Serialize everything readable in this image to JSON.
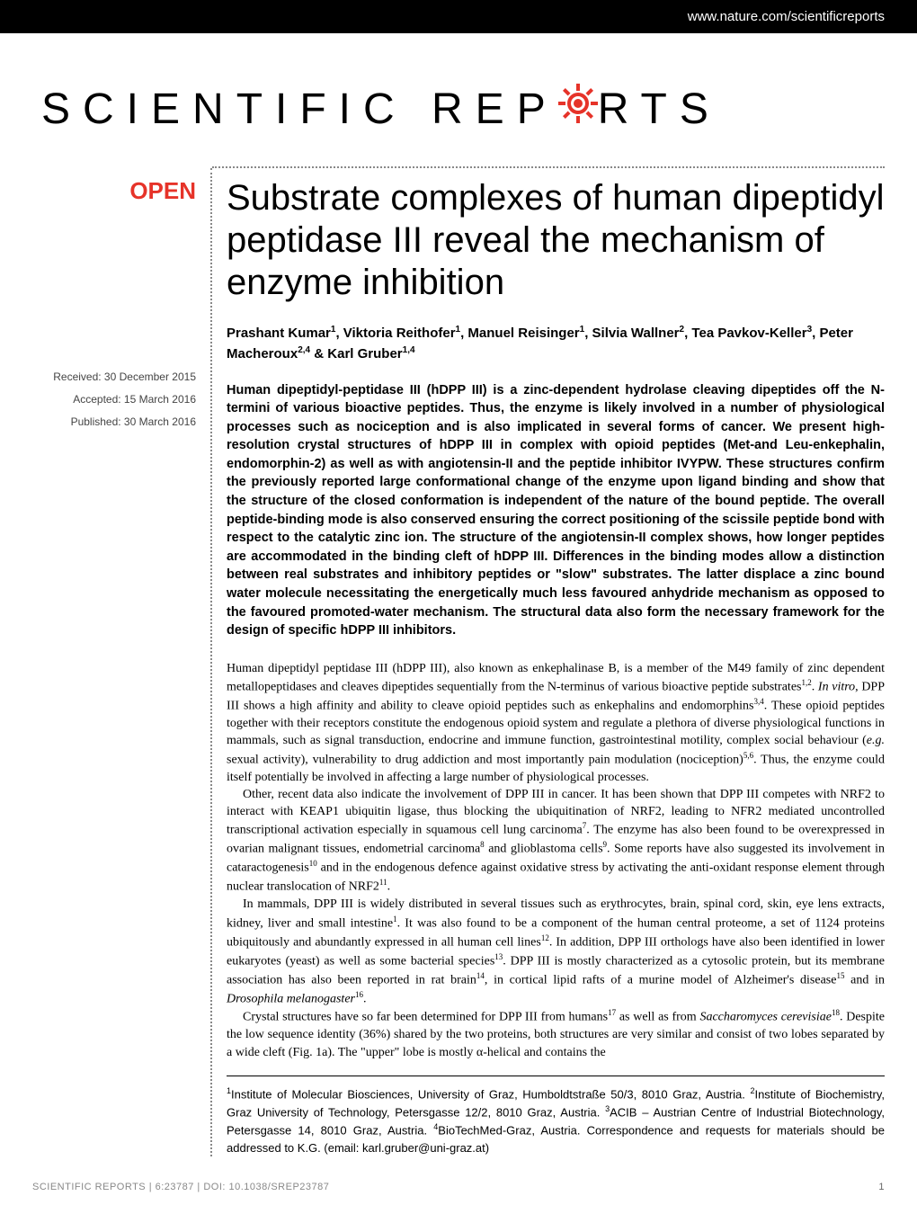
{
  "header": {
    "url": "www.nature.com/scientificreports"
  },
  "journal": {
    "name_part1": "SCIENTIFIC",
    "name_part2": "REP",
    "name_part3": "RTS"
  },
  "badge": {
    "open": "OPEN"
  },
  "meta": {
    "received": "Received: 30 December 2015",
    "accepted": "Accepted: 15 March 2016",
    "published": "Published: 30 March 2016"
  },
  "title": "Substrate complexes of human dipeptidyl peptidase III reveal the mechanism of enzyme inhibition",
  "authors_html": "Prashant Kumar<sup>1</sup>, Viktoria Reithofer<sup>1</sup>, Manuel Reisinger<sup>1</sup>, Silvia Wallner<sup>2</sup>, Tea Pavkov-Keller<sup>3</sup>, Peter Macheroux<sup>2,4</sup> & Karl Gruber<sup>1,4</sup>",
  "abstract": "Human dipeptidyl-peptidase III (hDPP III) is a zinc-dependent hydrolase cleaving dipeptides off the N-termini of various bioactive peptides. Thus, the enzyme is likely involved in a number of physiological processes such as nociception and is also implicated in several forms of cancer. We present high-resolution crystal structures of hDPP III in complex with opioid peptides (Met-and Leu-enkephalin, endomorphin-2) as well as with angiotensin-II and the peptide inhibitor IVYPW. These structures confirm the previously reported large conformational change of the enzyme upon ligand binding and show that the structure of the closed conformation is independent of the nature of the bound peptide. The overall peptide-binding mode is also conserved ensuring the correct positioning of the scissile peptide bond with respect to the catalytic zinc ion. The structure of the angiotensin-II complex shows, how longer peptides are accommodated in the binding cleft of hDPP III. Differences in the binding modes allow a distinction between real substrates and inhibitory peptides or \"slow\" substrates. The latter displace a zinc bound water molecule necessitating the energetically much less favoured anhydride mechanism as opposed to the favoured promoted-water mechanism. The structural data also form the necessary framework for the design of specific hDPP III inhibitors.",
  "body": {
    "p1_html": "Human dipeptidyl peptidase III (hDPP III), also known as enkephalinase B, is a member of the M49 family of zinc dependent metallopeptidases and cleaves dipeptides sequentially from the N-terminus of various bioactive peptide substrates<sup>1,2</sup>. <em>In vitro</em>, DPP III shows a high affinity and ability to cleave opioid peptides such as enkephalins and endomorphins<sup>3,4</sup>. These opioid peptides together with their receptors constitute the endogenous opioid system and regulate a plethora of diverse physiological functions in mammals, such as signal transduction, endocrine and immune function, gastrointestinal motility, complex social behaviour (<em>e.g.</em> sexual activity), vulnerability to drug addiction and most importantly pain modulation (nociception)<sup>5,6</sup>. Thus, the enzyme could itself potentially be involved in affecting a large number of physiological processes.",
    "p2_html": "Other, recent data also indicate the involvement of DPP III in cancer. It has been shown that DPP III competes with NRF2 to interact with KEAP1 ubiquitin ligase, thus blocking the ubiquitination of NRF2, leading to NFR2 mediated uncontrolled transcriptional activation especially in squamous cell lung carcinoma<sup>7</sup>. The enzyme has also been found to be overexpressed in ovarian malignant tissues, endometrial carcinoma<sup>8</sup> and glioblastoma cells<sup>9</sup>. Some reports have also suggested its involvement in cataractogenesis<sup>10</sup> and in the endogenous defence against oxidative stress by activating the anti-oxidant response element through nuclear translocation of NRF2<sup>11</sup>.",
    "p3_html": "In mammals, DPP III is widely distributed in several tissues such as erythrocytes, brain, spinal cord, skin, eye lens extracts, kidney, liver and small intestine<sup>1</sup>. It was also found to be a component of the human central proteome, a set of 1124 proteins ubiquitously and abundantly expressed in all human cell lines<sup>12</sup>. In addition, DPP III orthologs have also been identified in lower eukaryotes (yeast) as well as some bacterial species<sup>13</sup>. DPP III is mostly characterized as a cytosolic protein, but its membrane association has also been reported in rat brain<sup>14</sup>, in cortical lipid rafts of a murine model of Alzheimer's disease<sup>15</sup> and in <em>Drosophila melanogaster</em><sup>16</sup>.",
    "p4_html": "Crystal structures have so far been determined for DPP III from humans<sup>17</sup> as well as from <em>Saccharomyces cerevisiae</em><sup>18</sup>. Despite the low sequence identity (36%) shared by the two proteins, both structures are very similar and consist of two lobes separated by a wide cleft (Fig. 1a). The \"upper\" lobe is mostly α-helical and contains the"
  },
  "affiliations_html": "<sup>1</sup>Institute of Molecular Biosciences, University of Graz, Humboldtstraße 50/3, 8010 Graz, Austria. <sup>2</sup>Institute of Biochemistry, Graz University of Technology, Petersgasse 12/2, 8010 Graz, Austria. <sup>3</sup>ACIB – Austrian Centre of Industrial Biotechnology, Petersgasse 14, 8010 Graz, Austria. <sup>4</sup>BioTechMed-Graz, Austria. Correspondence and requests for materials should be addressed to K.G. (email: karl.gruber@uni-graz.at)",
  "footer": {
    "citation": "SCIENTIFIC REPORTS | 6:23787 | DOI: 10.1038/srep23787",
    "page": "1"
  },
  "colors": {
    "black": "#000000",
    "white": "#ffffff",
    "red": "#e63329",
    "grey_text": "#888888",
    "meta_grey": "#444444"
  }
}
